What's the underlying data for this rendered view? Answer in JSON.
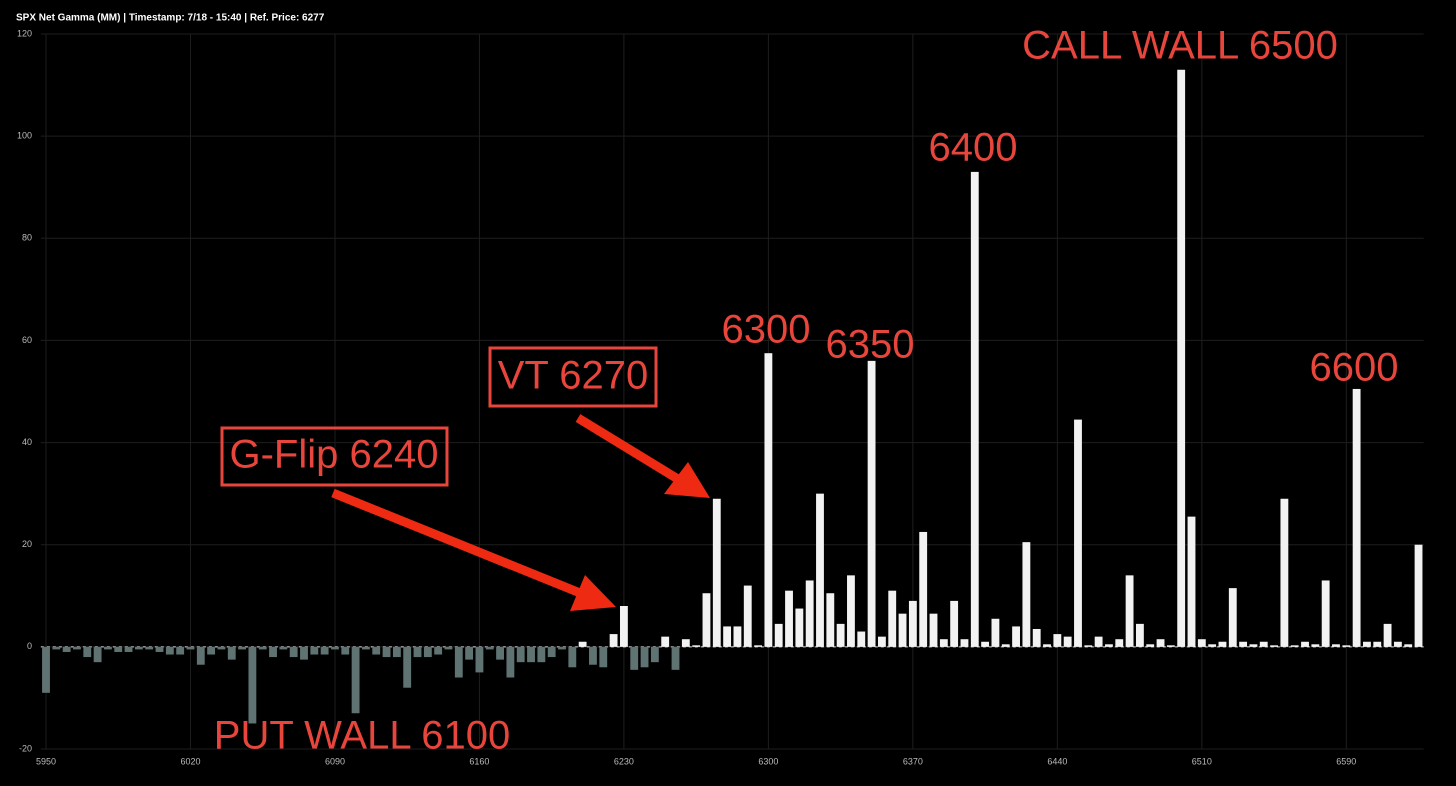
{
  "chart_data": {
    "type": "bar",
    "title": "SPX Net Gamma (MM) | Timestamp: 7/18 - 15:40  | Ref. Price: 6277",
    "categories": [
      "5950",
      null,
      null,
      null,
      null,
      null,
      null,
      null,
      null,
      null,
      null,
      null,
      null,
      null,
      "6020",
      null,
      null,
      null,
      null,
      null,
      null,
      null,
      null,
      null,
      null,
      null,
      null,
      null,
      "6090",
      null,
      null,
      null,
      null,
      null,
      null,
      null,
      null,
      null,
      null,
      null,
      null,
      null,
      "6160",
      null,
      null,
      null,
      null,
      null,
      null,
      null,
      null,
      null,
      null,
      null,
      null,
      null,
      "6230",
      null,
      null,
      null,
      null,
      null,
      null,
      null,
      null,
      null,
      null,
      null,
      null,
      null,
      "6300",
      null,
      null,
      null,
      null,
      null,
      null,
      null,
      null,
      null,
      null,
      null,
      null,
      null,
      "6370",
      null,
      null,
      null,
      null,
      null,
      null,
      null,
      null,
      null,
      null,
      null,
      null,
      null,
      "6440",
      null,
      null,
      null,
      null,
      null,
      null,
      null,
      null,
      null,
      null,
      null,
      null,
      null,
      "6510",
      null,
      null,
      null,
      null,
      null,
      null,
      null,
      null,
      null,
      null,
      null,
      null,
      null,
      "6590",
      null,
      null,
      null,
      null,
      null,
      null,
      null
    ],
    "values": [
      -9,
      -0.5,
      -1,
      -0.5,
      -2,
      -3,
      -0.5,
      -1,
      -1,
      -0.5,
      -0.5,
      -1,
      -1.5,
      -1.5,
      -0.5,
      -3.5,
      -1.5,
      -0.5,
      -2.5,
      -0.5,
      -15,
      -0.5,
      -2,
      -0.5,
      -2,
      -2.5,
      -1.5,
      -1.5,
      -0.5,
      -1.5,
      -13,
      -0.5,
      -1.5,
      -2,
      -2,
      -8,
      -2,
      -2,
      -1.5,
      -0.5,
      -6,
      -2.5,
      -5,
      -0.5,
      -2.5,
      -6,
      -3,
      -3,
      -3,
      -2,
      -0.5,
      -4,
      1,
      -3.5,
      -4,
      2.5,
      8,
      -4.5,
      -4,
      -3,
      2,
      -4.5,
      1.5,
      0.3,
      10.5,
      29,
      4,
      4,
      12,
      0.3,
      57.5,
      4.5,
      11,
      7.5,
      13,
      30,
      10.5,
      4.5,
      14,
      3,
      56,
      2,
      11,
      6.5,
      9,
      22.5,
      6.5,
      1.5,
      9,
      1.5,
      93,
      1,
      5.5,
      0.5,
      4,
      20.5,
      3.5,
      0.5,
      2.5,
      2,
      44.5,
      0.3,
      2,
      0.5,
      1.5,
      14,
      4.5,
      0.5,
      1.5,
      0.3,
      113,
      25.5,
      1.5,
      0.5,
      1,
      11.5,
      1,
      0.5,
      1,
      0.3,
      29,
      0.3,
      1,
      0.5,
      13,
      0.5,
      0.3,
      50.5,
      1,
      1,
      4.5,
      1,
      0.5,
      20
    ],
    "positive_color": "#f2f2f2",
    "negative_color": "#5f7373",
    "ylim": [
      -20,
      120
    ],
    "yticks": [
      -20,
      0,
      20,
      40,
      60,
      80,
      100,
      120
    ],
    "grid": true,
    "annotations": [
      "CALL WALL 6500",
      "6400",
      "6300",
      "6350",
      "6600",
      "VT 6270",
      "G-Flip 6240",
      "PUT WALL 6100"
    ]
  }
}
